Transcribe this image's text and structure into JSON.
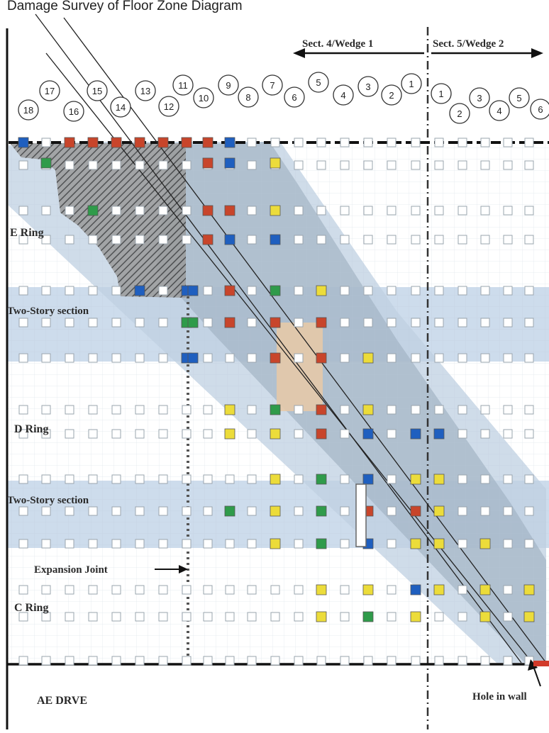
{
  "caption": "Damage Survey of Floor Zone Diagram",
  "sections": {
    "left": "Sect. 4/Wedge 1",
    "right": "Sect. 5/Wedge 2"
  },
  "column_numbers_left": [
    "18",
    "17",
    "16",
    "15",
    "14",
    "13",
    "12",
    "11",
    "10",
    "9",
    "8",
    "7",
    "6",
    "5",
    "4",
    "3",
    "2",
    "1"
  ],
  "column_numbers_right": [
    "1",
    "2",
    "3",
    "4",
    "5",
    "6"
  ],
  "labels": {
    "e_ring": "E Ring",
    "two_story_upper": "Two-Story section",
    "d_ring": "D Ring",
    "two_story_lower": "Two-Story section",
    "expansion_joint": "Expansion Joint",
    "c_ring": "C Ring",
    "ae_drive": "AE DRVE",
    "hole_in_wall": "Hole in wall"
  },
  "colors": {
    "red": "#c8452b",
    "blue": "#1f5fbf",
    "green": "#2f9b4a",
    "yellow": "#ecdc3a",
    "white": "#ffffff",
    "band": "#c9d9ea",
    "swath": "#a9b8c8",
    "hatch": "#555555",
    "tan": "#e6c9a8"
  }
}
